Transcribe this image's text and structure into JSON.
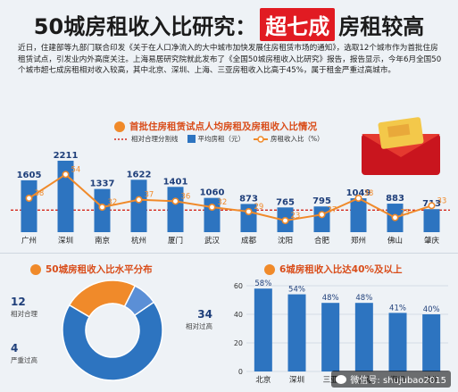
{
  "header": {
    "title_left": "50城房租收入比研究：",
    "title_tag": "超七成",
    "title_right": "房租较高"
  },
  "intro_text": "近日，住建部等九部门联合印发《关于在人口净流入的大中城市加快发展住房租赁市场的通知》，选取12个城市作为首批住房租赁试点，引发业内外高度关注。上海易居研究院就此发布了《全国50城房租收入比研究》报告，报告显示，今年6月全国50个城市超七成房租相对收入较高，其中北京、深圳、上海、三亚房租收入比高于45%，属于租金严重过高城市。",
  "section1": {
    "title": "首批住房租赁试点人均房租及房租收入比情况",
    "legend_threshold": "相对合理分割线",
    "legend_bar": "平均房租（元）",
    "legend_line": "房租收入比（%）"
  },
  "section2": {
    "title": "50城房租收入比水平分布"
  },
  "section3": {
    "title": "6城房租收入比达40%及以上"
  },
  "watermark": "微信号: shujubao2015",
  "colors": {
    "bar": "#2d74c0",
    "line": "#f08a2a",
    "threshold": "#d42a1f",
    "accent": "#e11b22"
  },
  "chart_data": [
    {
      "type": "bar",
      "title": "首批住房租赁试点人均房租及房租收入比情况",
      "categories": [
        "广州",
        "深圳",
        "南京",
        "杭州",
        "厦门",
        "武汉",
        "成都",
        "沈阳",
        "合肥",
        "郑州",
        "佛山",
        "肇庆"
      ],
      "series": [
        {
          "name": "平均房租（元）",
          "type": "bar",
          "values": [
            1605,
            2211,
            1337,
            1622,
            1401,
            1060,
            873,
            765,
            795,
            1049,
            883,
            713
          ]
        },
        {
          "name": "房租收入比（%）",
          "type": "line",
          "values": [
            38,
            54,
            32,
            37,
            36,
            32,
            29,
            23,
            27,
            38,
            25,
            33
          ]
        }
      ],
      "reference_line": {
        "name": "相对合理分割线"
      },
      "grid": false,
      "legend": "top"
    },
    {
      "type": "pie",
      "title": "50城房租收入比水平分布",
      "slices": [
        {
          "label": "相对过高",
          "value": 34,
          "color": "#2d74c0"
        },
        {
          "label": "相对合理",
          "value": 12,
          "color": "#f08a2a"
        },
        {
          "label": "严重过高",
          "value": 4,
          "color": "#5b8fd6"
        }
      ]
    },
    {
      "type": "bar",
      "title": "6城房租收入比达40%及以上",
      "categories": [
        "北京",
        "深圳",
        "三亚",
        "上海",
        "海口",
        "兰州"
      ],
      "values": [
        58,
        54,
        48,
        48,
        41,
        40
      ],
      "value_labels": [
        "58%",
        "54%",
        "48%",
        "48%",
        "41%",
        "40%"
      ],
      "yticks": [
        "0",
        "20",
        "40",
        "60"
      ],
      "ylim": [
        0,
        60
      ],
      "grid": true
    }
  ]
}
